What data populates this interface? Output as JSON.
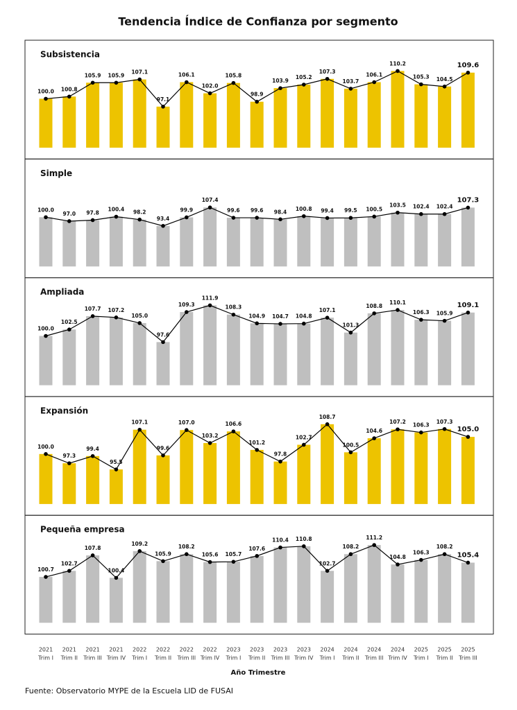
{
  "title": "Tendencia Índice de Confianza por segmento",
  "x_axis": {
    "label": "Año Trimestre",
    "years": [
      "2021",
      "2021",
      "2021",
      "2021",
      "2022",
      "2022",
      "2022",
      "2022",
      "2023",
      "2023",
      "2023",
      "2023",
      "2024",
      "2024",
      "2024",
      "2024",
      "2025",
      "2025",
      "2025"
    ],
    "quarters": [
      "Trim I",
      "Trim II",
      "Trim III",
      "Trim IV",
      "Trim I",
      "Trim II",
      "Trim III",
      "Trim IV",
      "Trim I",
      "Trim II",
      "Trim III",
      "Trim IV",
      "Trim I",
      "Trim II",
      "Trim III",
      "Trim IV",
      "Trim I",
      "Trim II",
      "Trim III"
    ]
  },
  "source": "Fuente: Observatorio MYPE de la Escuela LID de FUSAI",
  "chart_data": [
    {
      "type": "bar",
      "title": "Subsistencia",
      "color": "#edc300",
      "line_color": "#000000",
      "ylim": [
        82,
        112.6
      ],
      "values": [
        100.0,
        100.8,
        105.9,
        105.9,
        107.1,
        97.1,
        106.1,
        102.0,
        105.8,
        98.9,
        103.9,
        105.2,
        107.3,
        103.7,
        106.1,
        110.2,
        105.3,
        104.5,
        109.6
      ],
      "value_labels": [
        "100.0",
        "100.8",
        "105.9",
        "105.9",
        "107.1",
        "97.1",
        "106.1",
        "102.0",
        "105.8",
        "98.9",
        "103.9",
        "105.2",
        "107.3",
        "103.7",
        "106.1",
        "110.2",
        "105.3",
        "104.5",
        "109.6"
      ]
    },
    {
      "type": "bar",
      "title": "Simple",
      "color": "#bfbfbf",
      "line_color": "#000000",
      "ylim": [
        62.6,
        125.8
      ],
      "values": [
        100.0,
        97.0,
        97.8,
        100.4,
        98.2,
        93.4,
        99.9,
        107.4,
        99.6,
        99.6,
        98.4,
        100.8,
        99.4,
        99.5,
        100.5,
        103.5,
        102.4,
        102.4,
        107.3
      ],
      "value_labels": [
        "100.0",
        "97.0",
        "97.8",
        "100.4",
        "98.2",
        "93.4",
        "99.9",
        "107.4",
        "99.6",
        "99.6",
        "98.4",
        "100.8",
        "99.4",
        "99.5",
        "100.5",
        "103.5",
        "102.4",
        "102.4",
        "107.3"
      ]
    },
    {
      "type": "bar",
      "title": "Ampliada",
      "color": "#bfbfbf",
      "line_color": "#000000",
      "ylim": [
        80.8,
        113.2
      ],
      "values": [
        100.0,
        102.5,
        107.7,
        107.2,
        105.0,
        97.6,
        109.3,
        111.9,
        108.3,
        104.9,
        104.7,
        104.8,
        107.1,
        101.3,
        108.8,
        110.1,
        106.3,
        105.9,
        109.1
      ],
      "value_labels": [
        "100.0",
        "102.5",
        "107.7",
        "107.2",
        "105.0",
        "97.6",
        "109.3",
        "111.9",
        "108.3",
        "104.9",
        "104.7",
        "104.8",
        "107.1",
        "101.3",
        "108.8",
        "110.1",
        "106.3",
        "105.9",
        "109.1"
      ]
    },
    {
      "type": "bar",
      "title": "Expansión",
      "color": "#edc300",
      "line_color": "#000000",
      "ylim": [
        85.4,
        109.7
      ],
      "values": [
        100.0,
        97.3,
        99.4,
        95.5,
        107.1,
        99.6,
        107.0,
        103.2,
        106.6,
        101.2,
        97.8,
        102.7,
        108.7,
        100.5,
        104.6,
        107.2,
        106.3,
        107.3,
        105.0
      ],
      "value_labels": [
        "100.0",
        "97.3",
        "99.4",
        "95.5",
        "107.1",
        "99.6",
        "107.0",
        "103.2",
        "106.6",
        "101.2",
        "97.8",
        "102.7",
        "108.7",
        "100.5",
        "104.6",
        "107.2",
        "106.3",
        "107.3",
        "105.0"
      ]
    },
    {
      "type": "bar",
      "title": "Pequeña empresa",
      "color": "#bfbfbf",
      "line_color": "#000000",
      "ylim": [
        85.6,
        113
      ],
      "values": [
        100.7,
        102.7,
        107.8,
        100.4,
        109.2,
        105.9,
        108.2,
        105.6,
        105.7,
        107.6,
        110.4,
        110.8,
        102.7,
        108.2,
        111.2,
        104.8,
        106.3,
        108.2,
        105.4
      ],
      "value_labels": [
        "100.7",
        "102.7",
        "107.8",
        "100.4",
        "109.2",
        "105.9",
        "108.2",
        "105.6",
        "105.7",
        "107.6",
        "110.4",
        "110.8",
        "102.7",
        "108.2",
        "111.2",
        "104.8",
        "106.3",
        "108.2",
        "105.4"
      ]
    }
  ]
}
